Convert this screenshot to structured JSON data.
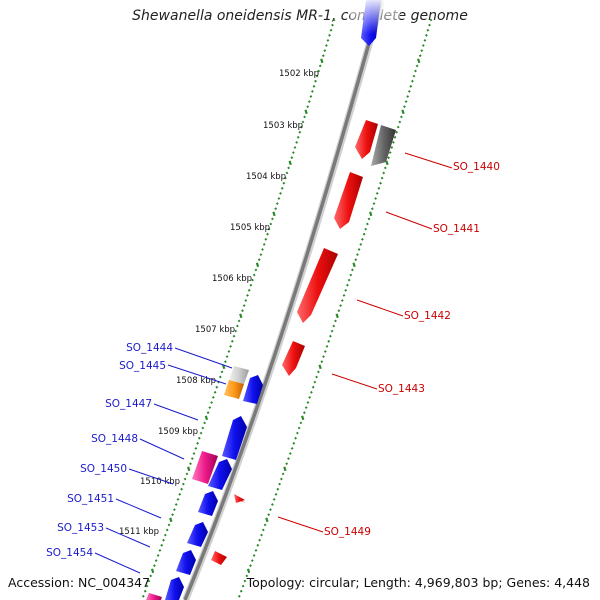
{
  "title": "Shewanella oneidensis MR-1, complete genome",
  "accession_text": "Accession: NC_004347",
  "summary_text": "Topology: circular; Length: 4,969,803 bp; Genes: 4,448",
  "colors": {
    "forward_strand": "#1a1aff",
    "reverse_strand": "#ff1a1a",
    "backbone": "#888888",
    "tick": "#2a8a2a",
    "label_forward": "#1a1acc",
    "label_reverse": "#cc0000"
  },
  "scale_labels": [
    "1502 kbp",
    "1503 kbp",
    "1504 kbp",
    "1505 kbp",
    "1506 kbp",
    "1507 kbp",
    "1508 kbp",
    "1509 kbp",
    "1510 kbp",
    "1511 kbp"
  ],
  "forward_gene_labels": [
    "SO_1444",
    "SO_1445",
    "SO_1447",
    "SO_1448",
    "SO_1450",
    "SO_1451",
    "SO_1453",
    "SO_1454"
  ],
  "reverse_gene_labels": [
    "SO_1440",
    "SO_1441",
    "SO_1442",
    "SO_1443",
    "SO_1449"
  ]
}
